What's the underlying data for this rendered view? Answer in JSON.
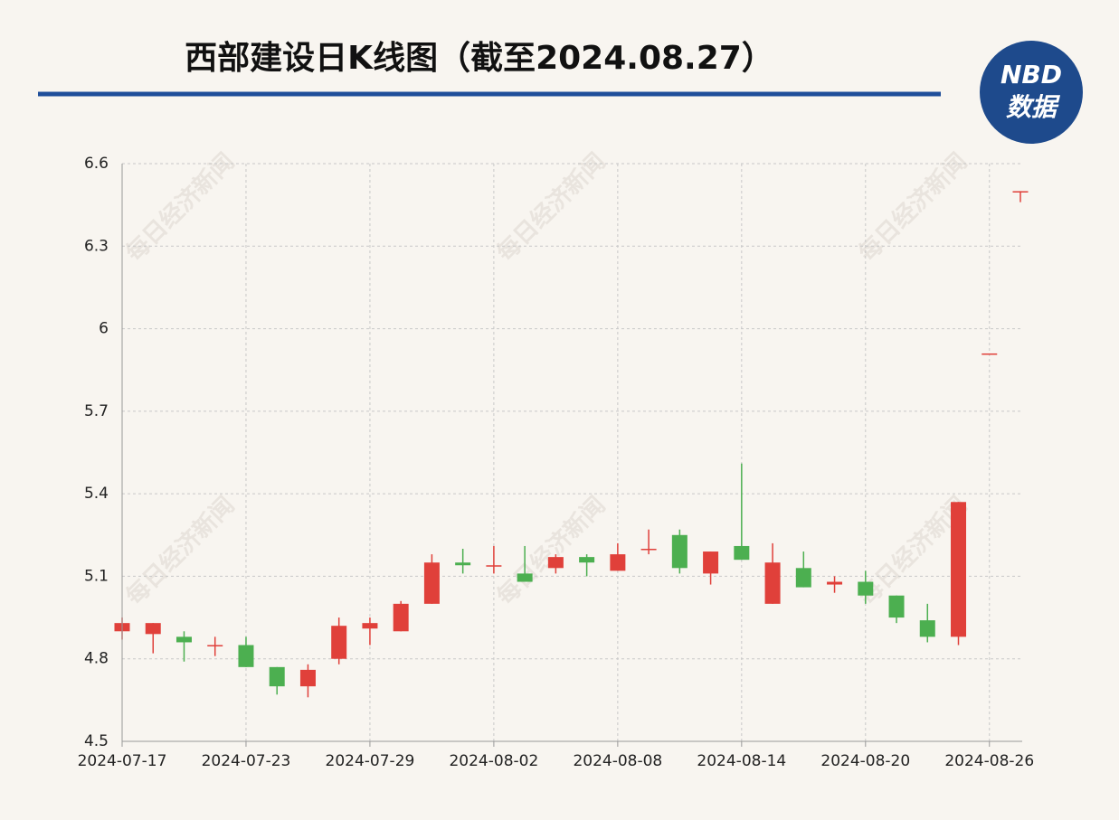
{
  "chart_data": {
    "type": "candlestick",
    "title": "西部建设日K线图（截至2024.08.27）",
    "watermark": "每日经济新闻",
    "logo": {
      "top": "NBD",
      "bottom": "数据"
    },
    "categories": [
      "2024-07-17",
      null,
      null,
      null,
      "2024-07-23",
      null,
      null,
      null,
      "2024-07-29",
      null,
      null,
      null,
      "2024-08-02",
      null,
      null,
      null,
      "2024-08-08",
      null,
      null,
      null,
      "2024-08-14",
      null,
      null,
      null,
      "2024-08-20",
      null,
      null,
      null,
      "2024-08-26",
      null
    ],
    "open": [
      4.9,
      4.89,
      4.88,
      4.85,
      4.85,
      4.77,
      4.7,
      4.8,
      4.91,
      4.9,
      5.0,
      5.15,
      5.14,
      5.11,
      5.13,
      5.17,
      5.12,
      5.2,
      5.25,
      5.11,
      5.21,
      5.0,
      5.13,
      5.07,
      5.08,
      5.03,
      4.94,
      4.88,
      5.91,
      6.5
    ],
    "high": [
      4.95,
      4.93,
      4.9,
      4.88,
      4.88,
      4.77,
      4.78,
      4.95,
      4.95,
      5.01,
      5.18,
      5.2,
      5.21,
      5.21,
      5.18,
      5.18,
      5.22,
      5.27,
      5.27,
      5.19,
      5.51,
      5.22,
      5.19,
      5.1,
      5.12,
      5.03,
      5.0,
      5.37,
      5.91,
      6.5
    ],
    "low": [
      4.87,
      4.82,
      4.79,
      4.81,
      4.77,
      4.67,
      4.66,
      4.78,
      4.85,
      4.9,
      5.0,
      5.11,
      5.11,
      5.08,
      5.11,
      5.1,
      5.12,
      5.18,
      5.11,
      5.07,
      5.16,
      5.0,
      5.06,
      5.04,
      5.0,
      4.93,
      4.86,
      4.85,
      5.91,
      6.46
    ],
    "close": [
      4.93,
      4.93,
      4.86,
      4.85,
      4.77,
      4.7,
      4.76,
      4.92,
      4.93,
      5.0,
      5.15,
      5.14,
      5.14,
      5.08,
      5.17,
      5.15,
      5.18,
      5.2,
      5.13,
      5.19,
      5.16,
      5.15,
      5.06,
      5.08,
      5.03,
      4.95,
      4.88,
      5.37,
      5.91,
      6.5
    ],
    "up_color": "#e0403a",
    "down_color": "#4caf50",
    "ylim": [
      4.5,
      6.6
    ],
    "yticks": [
      4.5,
      4.8,
      5.1,
      5.4,
      5.7,
      6,
      6.3,
      6.6
    ],
    "grid": true
  }
}
